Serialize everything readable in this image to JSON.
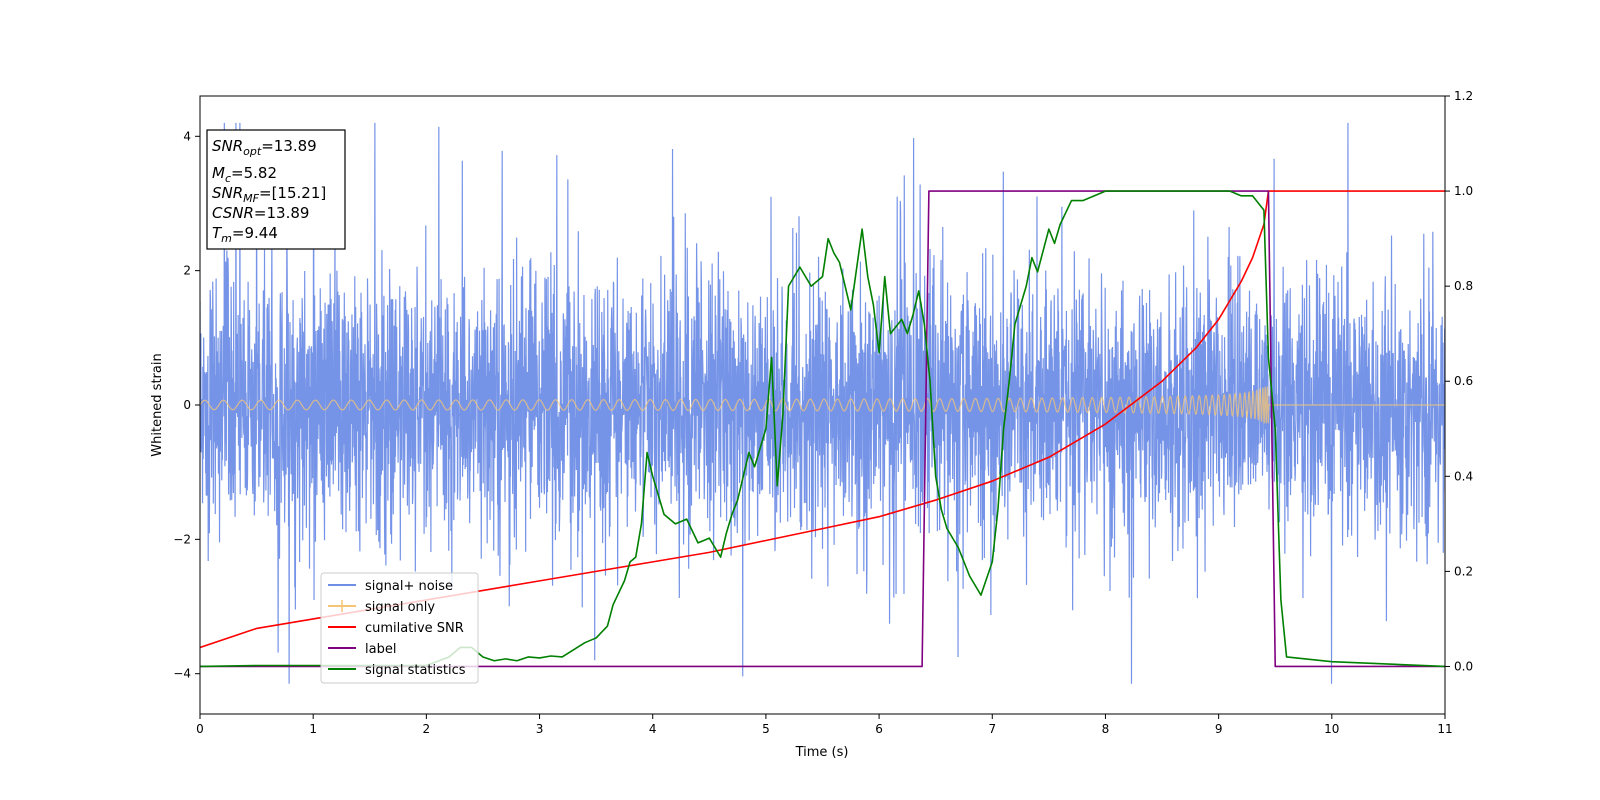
{
  "chart_data": {
    "type": "line",
    "xlabel": "Time (s)",
    "ylabel": "Whitened strain",
    "xlim": [
      0,
      11
    ],
    "ylim_left": [
      -4.6,
      4.6
    ],
    "ylim_right": [
      -0.1,
      1.2
    ],
    "x_ticks": [
      "0",
      "1",
      "2",
      "3",
      "4",
      "5",
      "6",
      "7",
      "8",
      "9",
      "10",
      "11"
    ],
    "y_ticks_left": [
      "4",
      "2",
      "0",
      "−2",
      "−4"
    ],
    "y_ticks_right": [
      "1.2",
      "1.0",
      "0.8",
      "0.6",
      "0.4",
      "0.2",
      "0.0"
    ],
    "grid": false,
    "legend_position": "lower-left",
    "annotation": {
      "snr_opt": {
        "sym": "SNR",
        "sub": "opt",
        "val": "=13.89"
      },
      "mc": {
        "sym": "M",
        "sub": "c",
        "val": "=5.82"
      },
      "snr_mf": {
        "sym": "SNR",
        "sub": "MF",
        "val": "=[15.21]"
      },
      "csnr": {
        "sym": "CSNR",
        "sub": "",
        "val": "=13.89"
      },
      "tm": {
        "sym": "T",
        "sub": "m",
        "val": "=9.44"
      }
    },
    "signal_noise": {
      "name": "signal+ noise",
      "axis": "left",
      "color": "#6f8ee6",
      "band_note": "dense noise roughly between -2.6 and 2.6, spikes up to ~4.2 and down to ~-4.1"
    },
    "signal_only": {
      "name": "signal only",
      "axis": "left",
      "color": "#f5c577",
      "t_merger": 9.44,
      "amplitude_start": 0.07,
      "amplitude_peak": 0.9
    },
    "series": [
      {
        "name": "cumilative SNR",
        "axis": "right",
        "color": "#ff0000",
        "x": [
          0,
          0.5,
          1,
          1.5,
          2,
          2.5,
          3,
          3.5,
          4,
          4.5,
          5,
          5.5,
          6,
          6.5,
          7,
          7.5,
          8,
          8.5,
          8.8,
          9.0,
          9.2,
          9.3,
          9.4,
          9.44,
          11
        ],
        "y": [
          0.04,
          0.08,
          0.1,
          0.12,
          0.14,
          0.16,
          0.18,
          0.2,
          0.22,
          0.24,
          0.265,
          0.29,
          0.315,
          0.35,
          0.39,
          0.44,
          0.51,
          0.6,
          0.67,
          0.73,
          0.81,
          0.86,
          0.93,
          1.0,
          1.0
        ]
      },
      {
        "name": "label",
        "axis": "right",
        "color": "#800080",
        "x": [
          0,
          6.38,
          6.44,
          9.44,
          9.5,
          11
        ],
        "y": [
          0,
          0,
          1,
          1,
          0,
          0
        ]
      },
      {
        "name": "signal statistics",
        "axis": "right",
        "color": "#008000",
        "x": [
          0,
          0.5,
          1,
          1.5,
          2,
          2.2,
          2.3,
          2.4,
          2.5,
          2.6,
          2.7,
          2.8,
          2.9,
          3.0,
          3.1,
          3.2,
          3.3,
          3.4,
          3.5,
          3.6,
          3.65,
          3.75,
          3.8,
          3.85,
          3.9,
          3.95,
          4.0,
          4.1,
          4.2,
          4.3,
          4.4,
          4.5,
          4.6,
          4.65,
          4.7,
          4.75,
          4.8,
          4.85,
          4.9,
          5.0,
          5.05,
          5.1,
          5.15,
          5.2,
          5.3,
          5.35,
          5.4,
          5.5,
          5.55,
          5.6,
          5.65,
          5.75,
          5.85,
          5.9,
          5.95,
          6.0,
          6.05,
          6.1,
          6.2,
          6.25,
          6.3,
          6.35,
          6.4,
          6.45,
          6.5,
          6.55,
          6.6,
          6.7,
          6.8,
          6.85,
          6.9,
          7.0,
          7.05,
          7.1,
          7.15,
          7.2,
          7.3,
          7.35,
          7.4,
          7.5,
          7.55,
          7.6,
          7.7,
          7.8,
          7.9,
          8.0,
          8.2,
          8.4,
          8.6,
          8.8,
          9.0,
          9.1,
          9.2,
          9.3,
          9.4,
          9.44,
          9.5,
          9.55,
          9.6,
          10,
          11
        ],
        "y": [
          0,
          0.002,
          0.002,
          0.002,
          0.002,
          0.02,
          0.04,
          0.04,
          0.02,
          0.012,
          0.016,
          0.012,
          0.02,
          0.018,
          0.022,
          0.02,
          0.035,
          0.05,
          0.06,
          0.085,
          0.13,
          0.18,
          0.22,
          0.23,
          0.3,
          0.45,
          0.4,
          0.32,
          0.3,
          0.31,
          0.26,
          0.27,
          0.23,
          0.28,
          0.32,
          0.35,
          0.4,
          0.45,
          0.42,
          0.5,
          0.65,
          0.38,
          0.53,
          0.8,
          0.84,
          0.82,
          0.8,
          0.82,
          0.9,
          0.87,
          0.85,
          0.75,
          0.92,
          0.82,
          0.76,
          0.66,
          0.82,
          0.7,
          0.73,
          0.7,
          0.74,
          0.79,
          0.72,
          0.6,
          0.4,
          0.33,
          0.29,
          0.25,
          0.19,
          0.17,
          0.15,
          0.22,
          0.33,
          0.5,
          0.6,
          0.72,
          0.8,
          0.86,
          0.83,
          0.92,
          0.89,
          0.93,
          0.98,
          0.98,
          0.99,
          1.0,
          1.0,
          1.0,
          1.0,
          1.0,
          1.0,
          1.0,
          0.99,
          0.99,
          0.96,
          0.65,
          0.5,
          0.14,
          0.02,
          0.01,
          0.0
        ]
      }
    ],
    "legend": [
      "signal+ noise",
      "signal only",
      "cumilative SNR",
      "label",
      "signal statistics"
    ]
  }
}
